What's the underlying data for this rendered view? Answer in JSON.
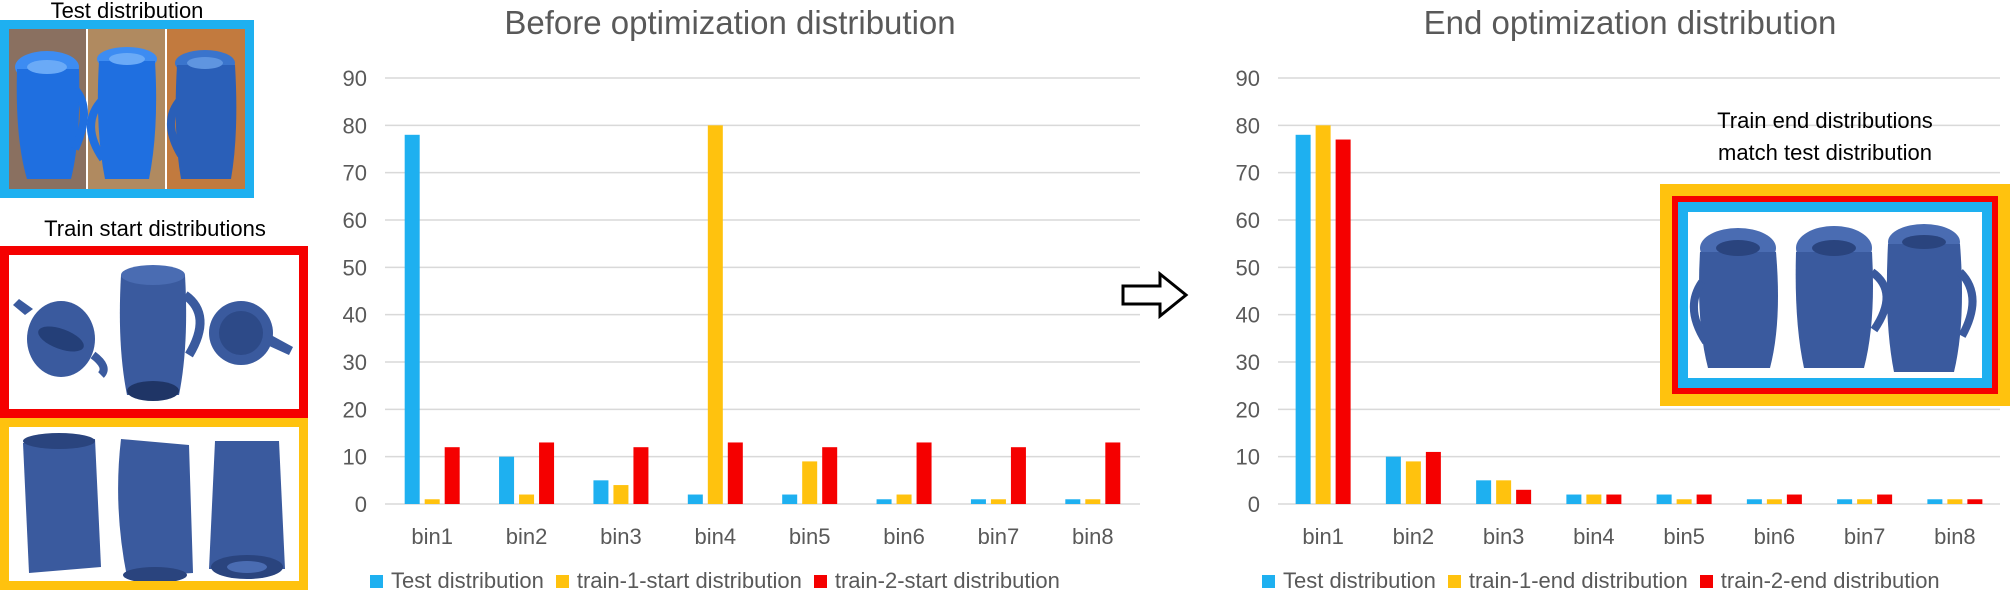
{
  "left_panel": {
    "test_label": "Test distribution",
    "train_label": "Train start distributions"
  },
  "inset": {
    "line1": "Train end distributions",
    "line2": "match test distribution"
  },
  "colors": {
    "test": "#1EB0F0",
    "train1": "#FFC20E",
    "train2": "#F50000",
    "grid": "#D9D9D9",
    "text": "#595959",
    "pitcher": "#3A5A9E"
  },
  "chart_data": [
    {
      "type": "bar",
      "title": "Before optimization distribution",
      "categories": [
        "bin1",
        "bin2",
        "bin3",
        "bin4",
        "bin5",
        "bin6",
        "bin7",
        "bin8"
      ],
      "ylim": [
        0,
        90
      ],
      "yticks": [
        0,
        10,
        20,
        30,
        40,
        50,
        60,
        70,
        80,
        90
      ],
      "grid": true,
      "legend": "bottom",
      "series": [
        {
          "name": "Test distribution",
          "color": "#1EB0F0",
          "values": [
            78,
            10,
            5,
            2,
            2,
            1,
            1,
            1
          ]
        },
        {
          "name": "train-1-start distribution",
          "color": "#FFC20E",
          "values": [
            1,
            2,
            4,
            80,
            9,
            2,
            1,
            1
          ]
        },
        {
          "name": "train-2-start distribution",
          "color": "#F50000",
          "values": [
            12,
            13,
            12,
            13,
            12,
            13,
            12,
            13
          ]
        }
      ]
    },
    {
      "type": "bar",
      "title": "End optimization distribution",
      "categories": [
        "bin1",
        "bin2",
        "bin3",
        "bin4",
        "bin5",
        "bin6",
        "bin7",
        "bin8"
      ],
      "ylim": [
        0,
        90
      ],
      "yticks": [
        0,
        10,
        20,
        30,
        40,
        50,
        60,
        70,
        80,
        90
      ],
      "grid": true,
      "legend": "bottom",
      "series": [
        {
          "name": "Test distribution",
          "color": "#1EB0F0",
          "values": [
            78,
            10,
            5,
            2,
            2,
            1,
            1,
            1
          ]
        },
        {
          "name": "train-1-end distribution",
          "color": "#FFC20E",
          "values": [
            80,
            9,
            5,
            2,
            1,
            1,
            1,
            1
          ]
        },
        {
          "name": "train-2-end distribution",
          "color": "#F50000",
          "values": [
            77,
            11,
            3,
            2,
            2,
            2,
            2,
            1
          ]
        }
      ]
    }
  ]
}
